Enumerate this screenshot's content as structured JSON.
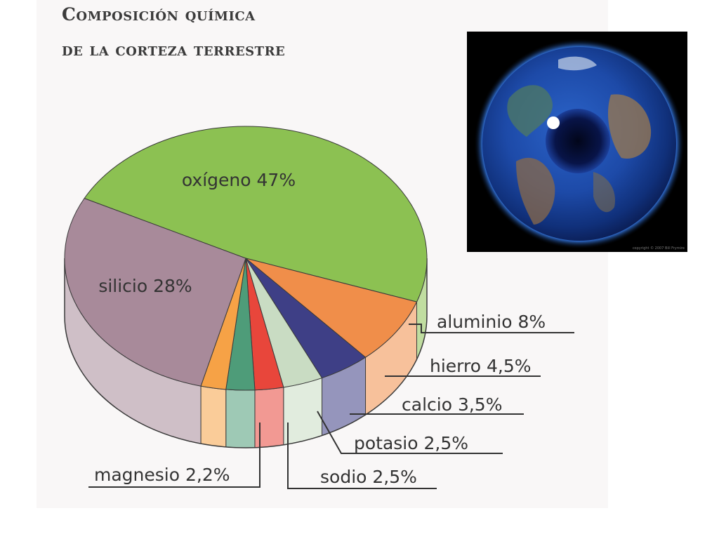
{
  "title": {
    "line1": "Composición química",
    "line2": "de la corteza terrestre"
  },
  "photo": {
    "credit": "copyright © 2007 Bill Frymire",
    "subject": "earth-eye-icon"
  },
  "colors": {
    "oxigeno": "#8cc152",
    "silicio": "#a88a9a",
    "aluminio": "#f08e4a",
    "hierro": "#3e3f86",
    "calcio": "#c9dcc3",
    "potasio": "#e8463b",
    "sodio": "#4e9c79",
    "magnesio": "#f6a246"
  },
  "chart_data": {
    "type": "pie",
    "title": "Composición química de la corteza terrestre",
    "slices": [
      {
        "key": "oxigeno",
        "label": "oxígeno 47%",
        "name": "oxígeno",
        "value": 47
      },
      {
        "key": "aluminio",
        "label": "aluminio 8%",
        "name": "aluminio",
        "value": 8
      },
      {
        "key": "hierro",
        "label": "hierro 4,5%",
        "name": "hierro",
        "value": 4.5
      },
      {
        "key": "calcio",
        "label": "calcio 3,5%",
        "name": "calcio",
        "value": 3.5
      },
      {
        "key": "potasio",
        "label": "potasio 2,5%",
        "name": "potasio",
        "value": 2.5
      },
      {
        "key": "sodio",
        "label": "sodio 2,5%",
        "name": "sodio",
        "value": 2.5
      },
      {
        "key": "magnesio",
        "label": "magnesio 2,2%",
        "name": "magnesio",
        "value": 2.2
      },
      {
        "key": "silicio",
        "label": "silicio 28%",
        "name": "silicio",
        "value": 28
      }
    ]
  }
}
